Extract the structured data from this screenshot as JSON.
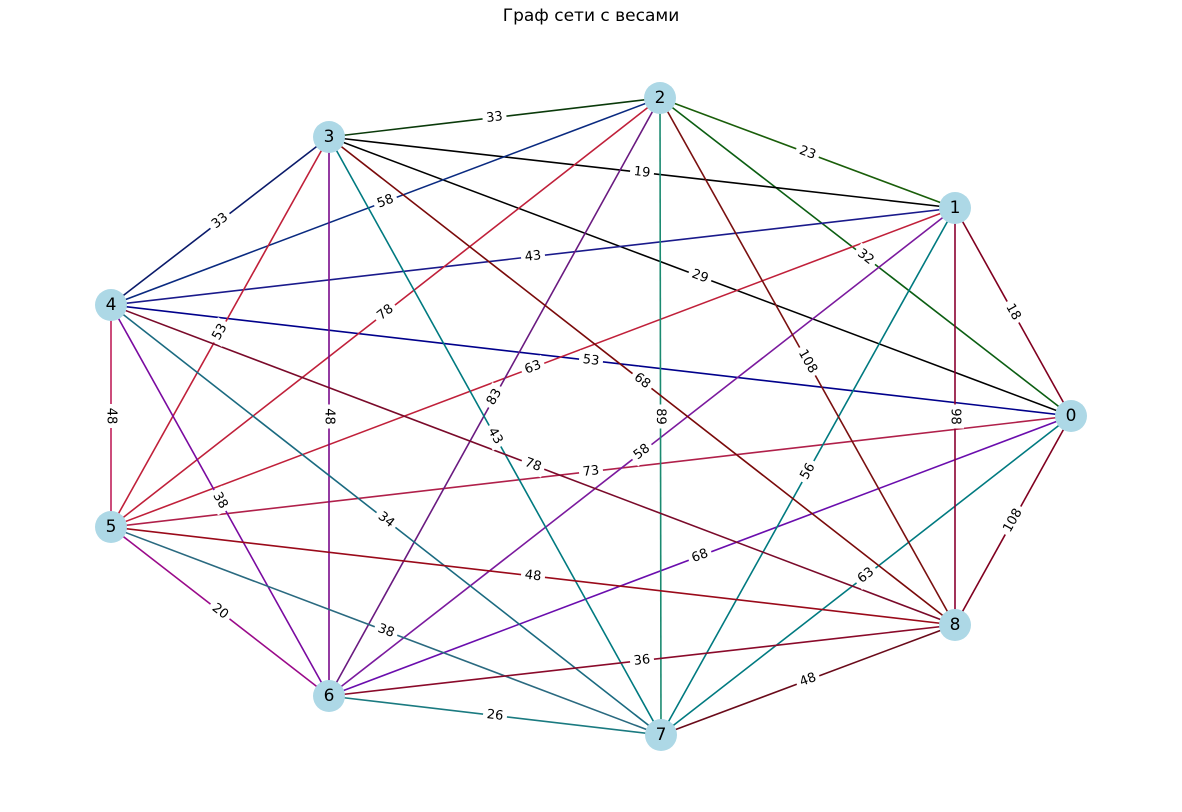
{
  "title": "Граф сети с весами",
  "colors": {
    "node_fill": "#add8e6",
    "label_text": "#000000",
    "background": "#ffffff"
  },
  "nodes": [
    {
      "id": "0",
      "label": "0"
    },
    {
      "id": "1",
      "label": "1"
    },
    {
      "id": "2",
      "label": "2"
    },
    {
      "id": "3",
      "label": "3"
    },
    {
      "id": "4",
      "label": "4"
    },
    {
      "id": "5",
      "label": "5"
    },
    {
      "id": "6",
      "label": "6"
    },
    {
      "id": "7",
      "label": "7"
    },
    {
      "id": "8",
      "label": "8"
    }
  ],
  "edges": [
    {
      "source": "0",
      "target": "1",
      "weight": "18",
      "color": "#800020"
    },
    {
      "source": "0",
      "target": "2",
      "weight": "32",
      "color": "#0b5e12"
    },
    {
      "source": "0",
      "target": "3",
      "weight": "29",
      "color": "#000000"
    },
    {
      "source": "0",
      "target": "4",
      "weight": "53",
      "color": "#00008b"
    },
    {
      "source": "0",
      "target": "5",
      "weight": "73",
      "color": "#b0204a"
    },
    {
      "source": "0",
      "target": "6",
      "weight": "68",
      "color": "#6a0dad"
    },
    {
      "source": "0",
      "target": "7",
      "weight": "63",
      "color": "#007a80"
    },
    {
      "source": "0",
      "target": "8",
      "weight": "108",
      "color": "#800020"
    },
    {
      "source": "1",
      "target": "2",
      "weight": "23",
      "color": "#1a5e0a"
    },
    {
      "source": "1",
      "target": "3",
      "weight": "19",
      "color": "#000000"
    },
    {
      "source": "1",
      "target": "4",
      "weight": "43",
      "color": "#1a1a8b"
    },
    {
      "source": "1",
      "target": "5",
      "weight": "63",
      "color": "#c0203a"
    },
    {
      "source": "1",
      "target": "6",
      "weight": "58",
      "color": "#7b1a9e"
    },
    {
      "source": "1",
      "target": "7",
      "weight": "56",
      "color": "#007a80"
    },
    {
      "source": "1",
      "target": "8",
      "weight": "98",
      "color": "#8b0030"
    },
    {
      "source": "2",
      "target": "3",
      "weight": "33",
      "color": "#0a3a0a"
    },
    {
      "source": "2",
      "target": "4",
      "weight": "58",
      "color": "#0a2a80"
    },
    {
      "source": "2",
      "target": "5",
      "weight": "78",
      "color": "#c0203a"
    },
    {
      "source": "2",
      "target": "6",
      "weight": "83",
      "color": "#6a1a80"
    },
    {
      "source": "2",
      "target": "7",
      "weight": "89",
      "color": "#1a8a70"
    },
    {
      "source": "2",
      "target": "8",
      "weight": "108",
      "color": "#7a1010"
    },
    {
      "source": "3",
      "target": "4",
      "weight": "33",
      "color": "#0a1a6a"
    },
    {
      "source": "3",
      "target": "5",
      "weight": "53",
      "color": "#c0203a"
    },
    {
      "source": "3",
      "target": "6",
      "weight": "48",
      "color": "#7a0a8a"
    },
    {
      "source": "3",
      "target": "7",
      "weight": "43",
      "color": "#007a80"
    },
    {
      "source": "3",
      "target": "8",
      "weight": "68",
      "color": "#7a0a0a"
    },
    {
      "source": "4",
      "target": "5",
      "weight": "48",
      "color": "#c0205a"
    },
    {
      "source": "4",
      "target": "6",
      "weight": "38",
      "color": "#7a0aa0"
    },
    {
      "source": "4",
      "target": "7",
      "weight": "34",
      "color": "#1a6a80"
    },
    {
      "source": "4",
      "target": "8",
      "weight": "78",
      "color": "#7a0a2a"
    },
    {
      "source": "5",
      "target": "6",
      "weight": "20",
      "color": "#9a0a8a"
    },
    {
      "source": "5",
      "target": "7",
      "weight": "38",
      "color": "#2a6a80"
    },
    {
      "source": "5",
      "target": "8",
      "weight": "48",
      "color": "#9a0a1a"
    },
    {
      "source": "6",
      "target": "7",
      "weight": "26",
      "color": "#1a7a80"
    },
    {
      "source": "6",
      "target": "8",
      "weight": "36",
      "color": "#8a0a2a"
    },
    {
      "source": "7",
      "target": "8",
      "weight": "48",
      "color": "#6a0a1a"
    }
  ]
}
